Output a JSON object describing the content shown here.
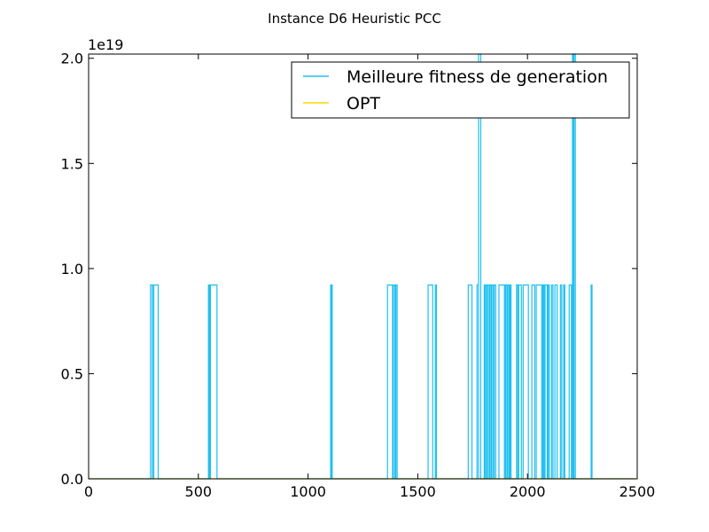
{
  "chart_data": {
    "type": "line",
    "title": "Instance D6 Heuristic PCC",
    "xlabel": "",
    "ylabel": "",
    "y_offset_label": "1e19",
    "xlim": [
      0,
      2500
    ],
    "ylim": [
      0,
      2.02
    ],
    "x_ticks": [
      0,
      500,
      1000,
      1500,
      2000,
      2500
    ],
    "x_tick_labels": [
      "0",
      "500",
      "1000",
      "1500",
      "2000",
      "2500"
    ],
    "y_ticks": [
      0,
      0.5,
      1.0,
      1.5,
      2.0
    ],
    "y_tick_labels": [
      "0.0",
      "0.5",
      "1.0",
      "1.5",
      "2.0"
    ],
    "grid": false,
    "legend_position": "top-right",
    "series": [
      {
        "name": "Meilleure fitness de generation",
        "color": "#1fbfef",
        "style": "step",
        "pulses": [
          [
            282,
            290,
            0.922
          ],
          [
            290,
            296,
            0.922
          ],
          [
            297,
            317,
            0.922
          ],
          [
            546,
            550,
            0.922
          ],
          [
            550,
            554,
            0.922
          ],
          [
            555,
            585,
            0.922
          ],
          [
            1103,
            1107,
            0.922
          ],
          [
            1107,
            1110,
            0.922
          ],
          [
            1362,
            1385,
            0.922
          ],
          [
            1389,
            1396,
            0.922
          ],
          [
            1400,
            1406,
            0.922
          ],
          [
            1547,
            1568,
            0.922
          ],
          [
            1580,
            1585,
            0.922
          ],
          [
            1730,
            1747,
            0.922
          ],
          [
            1770,
            1777,
            0.922
          ],
          [
            1777,
            1787,
            2.02
          ],
          [
            1803,
            1808,
            0.922
          ],
          [
            1810,
            1816,
            0.922
          ],
          [
            1818,
            1825,
            0.922
          ],
          [
            1828,
            1834,
            0.922
          ],
          [
            1838,
            1845,
            0.922
          ],
          [
            1848,
            1855,
            0.922
          ],
          [
            1870,
            1895,
            0.922
          ],
          [
            1900,
            1906,
            0.922
          ],
          [
            1910,
            1916,
            0.922
          ],
          [
            1920,
            1925,
            0.922
          ],
          [
            1950,
            1956,
            0.922
          ],
          [
            1960,
            1972,
            0.922
          ],
          [
            1980,
            2004,
            0.922
          ],
          [
            2020,
            2033,
            0.922
          ],
          [
            2040,
            2065,
            0.922
          ],
          [
            2070,
            2075,
            0.922
          ],
          [
            2080,
            2090,
            0.922
          ],
          [
            2094,
            2100,
            0.922
          ],
          [
            2110,
            2116,
            0.922
          ],
          [
            2125,
            2135,
            0.922
          ],
          [
            2150,
            2156,
            0.922
          ],
          [
            2165,
            2170,
            0.922
          ],
          [
            2190,
            2200,
            0.922
          ],
          [
            2205,
            2210,
            2.02
          ],
          [
            2212,
            2218,
            2.02
          ],
          [
            2290,
            2294,
            0.922
          ]
        ]
      },
      {
        "name": "OPT",
        "color": "#ffd700",
        "style": "line",
        "x": [
          0,
          2500
        ],
        "values": [
          0,
          0
        ]
      }
    ]
  }
}
